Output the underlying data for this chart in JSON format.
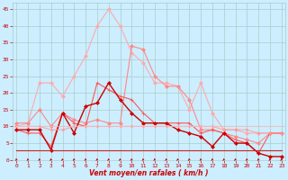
{
  "xlabel": "Vent moyen/en rafales ( km/h )",
  "x": [
    0,
    1,
    2,
    3,
    4,
    5,
    6,
    7,
    8,
    9,
    10,
    11,
    12,
    13,
    14,
    15,
    16,
    17,
    18,
    19,
    20,
    21,
    22,
    23
  ],
  "series": [
    {
      "color": "#ffaaaa",
      "lw": 0.8,
      "marker": "D",
      "ms": 2.0,
      "alpha": 1.0,
      "values": [
        10,
        11,
        23,
        23,
        19,
        25,
        31,
        40,
        45,
        40,
        32,
        29,
        23,
        23,
        22,
        15,
        23,
        14,
        9,
        9,
        8,
        8,
        8,
        8
      ]
    },
    {
      "color": "#ff8888",
      "lw": 0.8,
      "marker": "D",
      "ms": 2.0,
      "alpha": 1.0,
      "values": [
        11,
        11,
        15,
        10,
        14,
        12,
        11,
        12,
        11,
        11,
        34,
        33,
        25,
        22,
        22,
        18,
        9,
        9,
        8,
        7,
        6,
        5,
        8,
        8
      ]
    },
    {
      "color": "#ff5555",
      "lw": 0.8,
      "marker": "+",
      "ms": 3.5,
      "alpha": 1.0,
      "values": [
        9,
        8,
        8,
        4,
        14,
        11,
        10,
        23,
        21,
        19,
        18,
        14,
        11,
        11,
        11,
        11,
        8,
        9,
        8,
        6,
        5,
        2,
        8,
        8
      ]
    },
    {
      "color": "#cc0000",
      "lw": 1.0,
      "marker": "D",
      "ms": 2.0,
      "alpha": 1.0,
      "values": [
        9,
        9,
        9,
        3,
        14,
        8,
        16,
        17,
        23,
        18,
        14,
        11,
        11,
        11,
        9,
        8,
        7,
        4,
        8,
        5,
        5,
        2,
        1,
        1
      ]
    },
    {
      "color": "#ff9999",
      "lw": 0.8,
      "marker": "D",
      "ms": 1.5,
      "alpha": 0.8,
      "values": [
        10,
        10,
        10,
        9,
        9,
        10,
        10,
        10,
        10,
        10,
        10,
        10,
        10,
        10,
        10,
        10,
        10,
        10,
        9,
        9,
        9,
        8,
        8,
        8
      ]
    },
    {
      "color": "#cc2222",
      "lw": 0.8,
      "marker": null,
      "ms": 0,
      "alpha": 1.0,
      "values": [
        3,
        3,
        3,
        3,
        3,
        3,
        3,
        3,
        3,
        3,
        3,
        3,
        3,
        3,
        3,
        3,
        3,
        3,
        3,
        3,
        3,
        3,
        3,
        3
      ]
    },
    {
      "color": "#ffbbbb",
      "lw": 0.8,
      "marker": null,
      "ms": 0,
      "alpha": 0.7,
      "values": [
        10,
        10,
        10,
        10,
        10,
        10,
        10,
        10,
        10,
        10,
        10,
        10,
        10,
        10,
        10,
        10,
        10,
        10,
        10,
        10,
        10,
        10,
        10,
        10
      ]
    }
  ],
  "ylim": [
    0,
    47
  ],
  "xlim": [
    -0.3,
    23.3
  ],
  "yticks": [
    0,
    5,
    10,
    15,
    20,
    25,
    30,
    35,
    40,
    45
  ],
  "xticks": [
    0,
    1,
    2,
    3,
    4,
    5,
    6,
    7,
    8,
    9,
    10,
    11,
    12,
    13,
    14,
    15,
    16,
    17,
    18,
    19,
    20,
    21,
    22,
    23
  ],
  "bg_color": "#cceeff",
  "grid_color": "#aacccc",
  "text_color": "#cc0000",
  "arrow_color": "#cc0000"
}
